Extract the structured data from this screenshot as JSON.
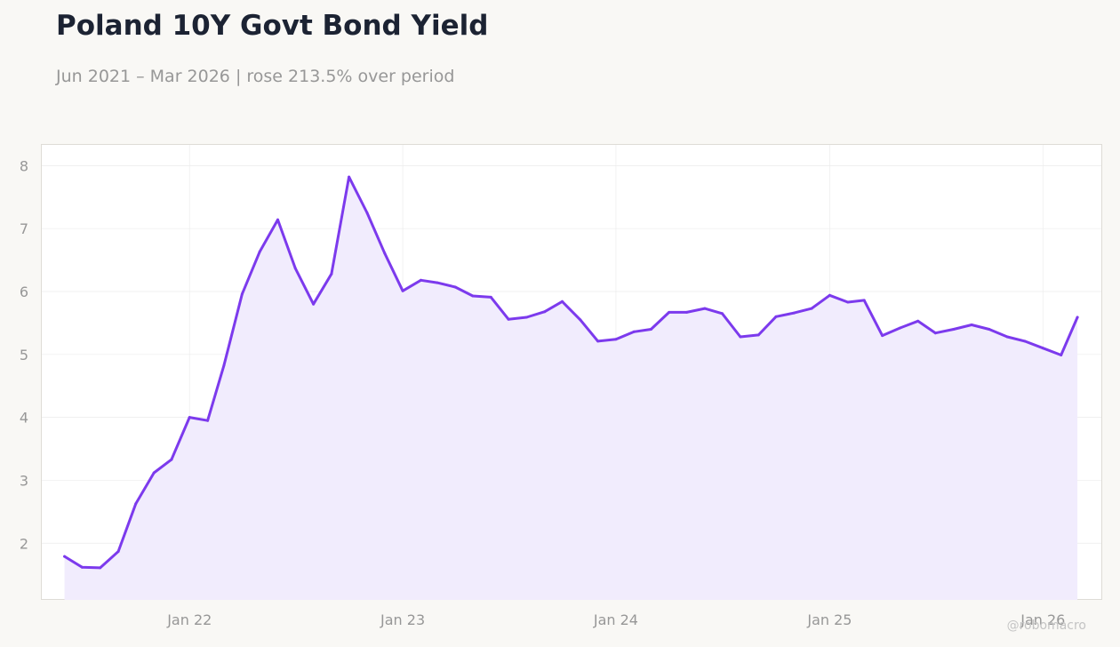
{
  "header": {
    "title": "Poland 10Y Govt Bond Yield",
    "subtitle": "Jun 2021 – Mar 2026 | rose 213.5% over period"
  },
  "watermark": "@robomacro",
  "colors": {
    "line": "#7c3aed",
    "fill": "#f1ecfd",
    "background": "#f9f8f5",
    "plot_background": "#ffffff",
    "grid": "#ececec",
    "text_title": "#1c2333",
    "text_muted": "#979797"
  },
  "chart_data": {
    "type": "area",
    "title": "Poland 10Y Govt Bond Yield",
    "subtitle": "Jun 2021 – Mar 2026 | rose 213.5% over period",
    "xlabel": "",
    "ylabel": "",
    "grid": true,
    "legend": "none",
    "xlim": [
      "2021-04-23",
      "2026-04-11"
    ],
    "ylim": [
      1.1,
      8.33
    ],
    "y_ticks": [
      2,
      3,
      4,
      5,
      6,
      7,
      8
    ],
    "x_ticks": [
      {
        "date": "2022-01-01",
        "label": "Jan 22"
      },
      {
        "date": "2023-01-01",
        "label": "Jan 23"
      },
      {
        "date": "2024-01-01",
        "label": "Jan 24"
      },
      {
        "date": "2025-01-01",
        "label": "Jan 25"
      },
      {
        "date": "2026-01-01",
        "label": "Jan 26"
      }
    ],
    "series": [
      {
        "x": [
          "2021-06-01",
          "2021-07-01",
          "2021-08-01",
          "2021-09-01",
          "2021-10-01",
          "2021-11-01",
          "2021-12-01",
          "2022-01-01",
          "2022-02-01",
          "2022-03-01",
          "2022-04-01",
          "2022-05-01",
          "2022-06-01",
          "2022-07-01",
          "2022-08-01",
          "2022-09-01",
          "2022-10-01",
          "2022-11-01",
          "2022-12-01",
          "2023-01-01",
          "2023-02-01",
          "2023-03-01",
          "2023-04-01",
          "2023-05-01",
          "2023-06-01",
          "2023-07-01",
          "2023-08-01",
          "2023-09-01",
          "2023-10-01",
          "2023-11-01",
          "2023-12-01",
          "2024-01-01",
          "2024-02-01",
          "2024-03-01",
          "2024-04-01",
          "2024-05-01",
          "2024-06-01",
          "2024-07-01",
          "2024-08-01",
          "2024-09-01",
          "2024-10-01",
          "2024-11-01",
          "2024-12-01",
          "2025-01-01",
          "2025-02-01",
          "2025-03-01",
          "2025-04-01",
          "2025-05-01",
          "2025-06-01",
          "2025-07-01",
          "2025-08-01",
          "2025-09-01",
          "2025-10-01",
          "2025-11-01",
          "2025-12-01",
          "2026-01-01",
          "2026-02-01",
          "2026-03-01"
        ],
        "values": [
          1.79,
          1.62,
          1.61,
          1.87,
          2.63,
          3.12,
          3.33,
          4.0,
          3.95,
          4.83,
          5.96,
          6.63,
          7.14,
          6.37,
          5.8,
          6.28,
          7.82,
          7.25,
          6.61,
          6.01,
          6.18,
          6.14,
          6.07,
          5.93,
          5.91,
          5.56,
          5.59,
          5.68,
          5.84,
          5.55,
          5.21,
          5.24,
          5.36,
          5.4,
          5.67,
          5.67,
          5.73,
          5.65,
          5.28,
          5.31,
          5.6,
          5.66,
          5.73,
          5.94,
          5.83,
          5.86,
          5.3,
          5.42,
          5.53,
          5.34,
          5.4,
          5.47,
          5.4,
          5.28,
          5.21,
          5.1,
          4.99,
          5.59
        ]
      }
    ]
  }
}
